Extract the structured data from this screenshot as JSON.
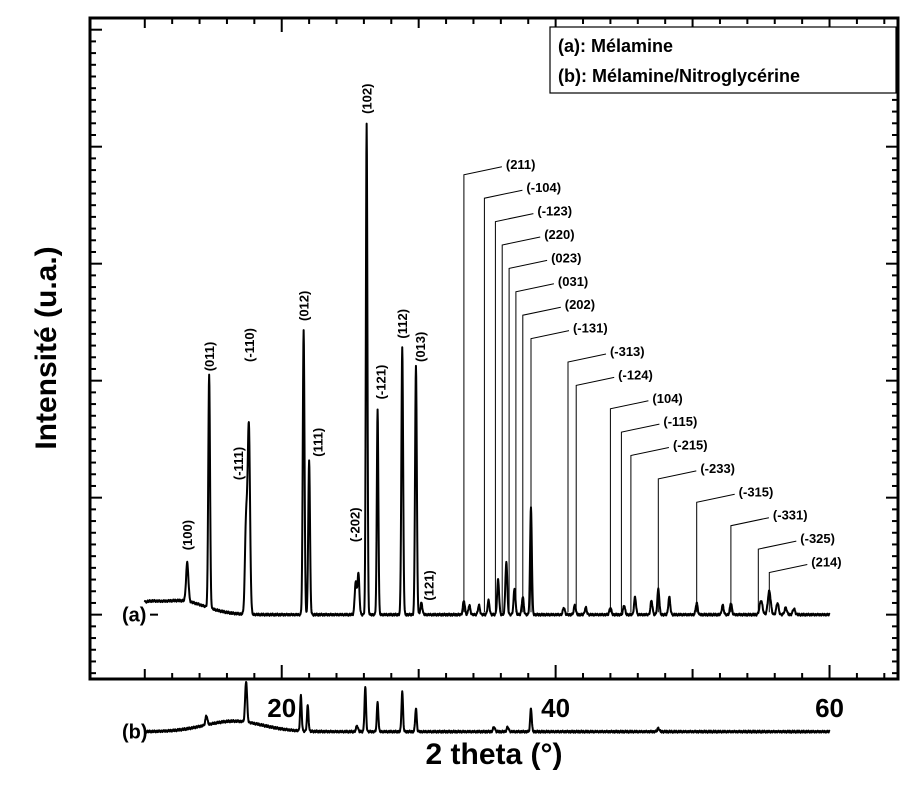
{
  "chart_data": {
    "type": "line",
    "xlabel": "2 theta (°)",
    "ylabel": "Intensité (u.a.)",
    "xlim": [
      6,
      65
    ],
    "ylim": [
      -0.55,
      5.1
    ],
    "x_ticks": [
      20,
      40,
      60
    ],
    "y_ticks_show_labels": false,
    "grid": false,
    "legend": {
      "placement": "top-right",
      "entries": [
        "(a): Mélamine",
        "(b): Mélamine/Nitroglycérine"
      ]
    },
    "series": [
      {
        "name": "(a)",
        "baseline": 0,
        "hump": {
          "center": 12.5,
          "width": 2.6,
          "height": 0.12
        },
        "peaks": [
          {
            "x": 13.1,
            "h": 0.33,
            "w": 0.12
          },
          {
            "x": 14.7,
            "h": 2.0,
            "w": 0.09
          },
          {
            "x": 17.4,
            "h": 0.8,
            "w": 0.12
          },
          {
            "x": 17.6,
            "h": 1.6,
            "w": 0.12
          },
          {
            "x": 21.6,
            "h": 2.43,
            "w": 0.09
          },
          {
            "x": 22.0,
            "h": 1.32,
            "w": 0.09
          },
          {
            "x": 25.4,
            "h": 0.28,
            "w": 0.1
          },
          {
            "x": 25.6,
            "h": 0.35,
            "w": 0.1
          },
          {
            "x": 26.2,
            "h": 4.2,
            "w": 0.08
          },
          {
            "x": 27.0,
            "h": 1.75,
            "w": 0.08
          },
          {
            "x": 28.8,
            "h": 2.28,
            "w": 0.09
          },
          {
            "x": 29.8,
            "h": 2.13,
            "w": 0.09
          },
          {
            "x": 30.2,
            "h": 0.1,
            "w": 0.1
          },
          {
            "x": 33.3,
            "h": 0.12,
            "w": 0.1
          },
          {
            "x": 33.7,
            "h": 0.08,
            "w": 0.1
          },
          {
            "x": 34.4,
            "h": 0.08,
            "w": 0.1
          },
          {
            "x": 35.1,
            "h": 0.12,
            "w": 0.1
          },
          {
            "x": 35.8,
            "h": 0.3,
            "w": 0.1
          },
          {
            "x": 36.4,
            "h": 0.45,
            "w": 0.1
          },
          {
            "x": 37.0,
            "h": 0.22,
            "w": 0.1
          },
          {
            "x": 37.6,
            "h": 0.15,
            "w": 0.1
          },
          {
            "x": 38.2,
            "h": 0.92,
            "w": 0.09
          },
          {
            "x": 40.6,
            "h": 0.06,
            "w": 0.1
          },
          {
            "x": 41.4,
            "h": 0.08,
            "w": 0.1
          },
          {
            "x": 42.2,
            "h": 0.06,
            "w": 0.1
          },
          {
            "x": 44.0,
            "h": 0.06,
            "w": 0.1
          },
          {
            "x": 45.0,
            "h": 0.08,
            "w": 0.1
          },
          {
            "x": 45.8,
            "h": 0.15,
            "w": 0.1
          },
          {
            "x": 47.0,
            "h": 0.12,
            "w": 0.1
          },
          {
            "x": 47.5,
            "h": 0.22,
            "w": 0.1
          },
          {
            "x": 48.3,
            "h": 0.15,
            "w": 0.1
          },
          {
            "x": 50.3,
            "h": 0.1,
            "w": 0.1
          },
          {
            "x": 52.2,
            "h": 0.08,
            "w": 0.1
          },
          {
            "x": 52.8,
            "h": 0.1,
            "w": 0.1
          },
          {
            "x": 55.0,
            "h": 0.12,
            "w": 0.15
          },
          {
            "x": 55.6,
            "h": 0.2,
            "w": 0.15
          },
          {
            "x": 56.2,
            "h": 0.1,
            "w": 0.12
          },
          {
            "x": 56.8,
            "h": 0.06,
            "w": 0.12
          },
          {
            "x": 57.4,
            "h": 0.05,
            "w": 0.12
          }
        ]
      },
      {
        "name": "(b)",
        "baseline": -1,
        "hump": {
          "center": 16.5,
          "width": 3.0,
          "height": 0.09
        },
        "peaks": [
          {
            "x": 14.5,
            "h": 0.08,
            "w": 0.1
          },
          {
            "x": 17.4,
            "h": 0.35,
            "w": 0.1
          },
          {
            "x": 21.4,
            "h": 0.3,
            "w": 0.08
          },
          {
            "x": 21.9,
            "h": 0.22,
            "w": 0.08
          },
          {
            "x": 25.5,
            "h": 0.05,
            "w": 0.1
          },
          {
            "x": 26.1,
            "h": 0.38,
            "w": 0.08
          },
          {
            "x": 27.0,
            "h": 0.25,
            "w": 0.08
          },
          {
            "x": 28.8,
            "h": 0.34,
            "w": 0.08
          },
          {
            "x": 29.8,
            "h": 0.2,
            "w": 0.08
          },
          {
            "x": 35.5,
            "h": 0.04,
            "w": 0.1
          },
          {
            "x": 36.5,
            "h": 0.04,
            "w": 0.1
          },
          {
            "x": 38.2,
            "h": 0.2,
            "w": 0.08
          },
          {
            "x": 47.5,
            "h": 0.03,
            "w": 0.1
          }
        ]
      }
    ],
    "annotations": {
      "vertical": [
        {
          "text": "(100)",
          "x": 13.1,
          "y": 0.55
        },
        {
          "text": "(011)",
          "x": 14.7,
          "y": 2.08
        },
        {
          "text": "(-111)",
          "x": 16.8,
          "y": 1.15
        },
        {
          "text": "(-110)",
          "x": 17.6,
          "y": 2.16
        },
        {
          "text": "(012)",
          "x": 21.6,
          "y": 2.51
        },
        {
          "text": "(111)",
          "x": 22.6,
          "y": 1.35
        },
        {
          "text": "(-202)",
          "x": 25.3,
          "y": 0.62
        },
        {
          "text": "(102)",
          "x": 26.2,
          "y": 4.28
        },
        {
          "text": "(-121)",
          "x": 27.2,
          "y": 1.84
        },
        {
          "text": "(112)",
          "x": 28.8,
          "y": 2.36
        },
        {
          "text": "(013)",
          "x": 30.1,
          "y": 2.16
        },
        {
          "text": "(121)",
          "x": 30.7,
          "y": 0.12
        }
      ],
      "leaders": [
        {
          "text": "(211)",
          "x": 33.3,
          "y": 3.76
        },
        {
          "text": "(-104)",
          "x": 34.8,
          "y": 3.56
        },
        {
          "text": "(-123)",
          "x": 35.6,
          "y": 3.36
        },
        {
          "text": "(220)",
          "x": 36.1,
          "y": 3.16
        },
        {
          "text": "(023)",
          "x": 36.6,
          "y": 2.96
        },
        {
          "text": "(031)",
          "x": 37.1,
          "y": 2.76
        },
        {
          "text": "(202)",
          "x": 37.6,
          "y": 2.56
        },
        {
          "text": "(-131)",
          "x": 38.2,
          "y": 2.36
        },
        {
          "text": "(-313)",
          "x": 40.9,
          "y": 2.16
        },
        {
          "text": "(-124)",
          "x": 41.5,
          "y": 1.96
        },
        {
          "text": "(104)",
          "x": 44.0,
          "y": 1.76
        },
        {
          "text": "(-115)",
          "x": 44.8,
          "y": 1.56
        },
        {
          "text": "(-215)",
          "x": 45.5,
          "y": 1.36
        },
        {
          "text": "(-233)",
          "x": 47.5,
          "y": 1.16
        },
        {
          "text": "(-315)",
          "x": 50.3,
          "y": 0.96
        },
        {
          "text": "(-331)",
          "x": 52.8,
          "y": 0.76
        },
        {
          "text": "(-325)",
          "x": 54.8,
          "y": 0.56
        },
        {
          "text": "(214)",
          "x": 55.6,
          "y": 0.36
        }
      ]
    },
    "trace_labels": [
      {
        "text": "(a)",
        "y": 0
      },
      {
        "text": "(b)",
        "y": -1
      }
    ]
  }
}
